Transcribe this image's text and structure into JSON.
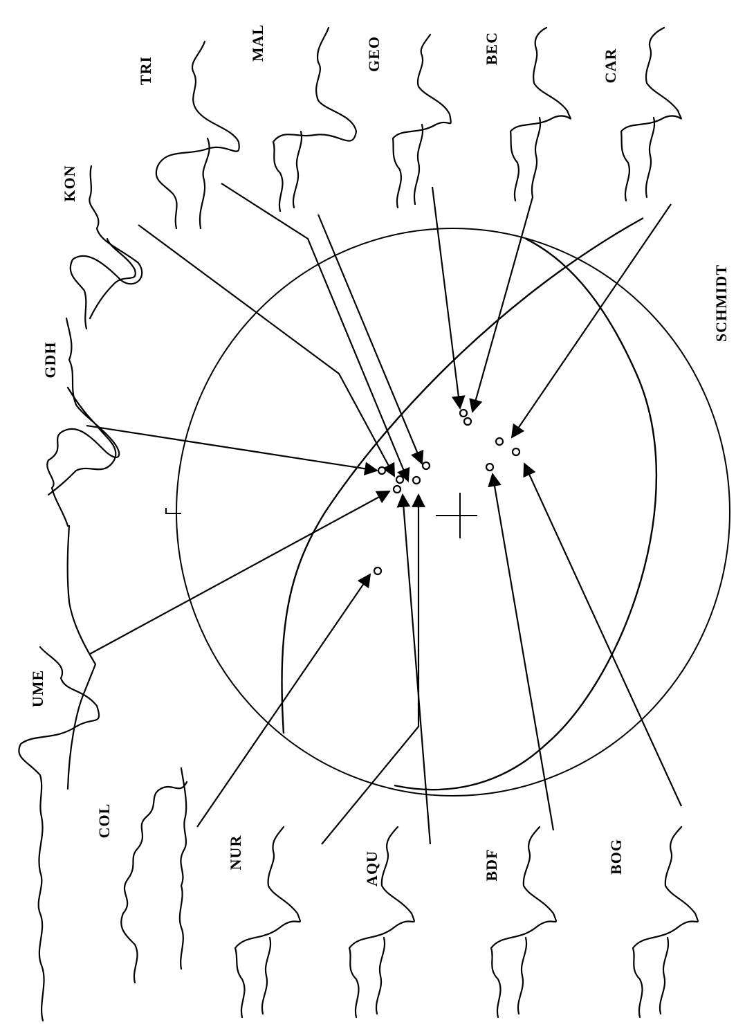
{
  "diagram": {
    "net_label": "SCHMIDT",
    "stations": [
      {
        "code": "UME"
      },
      {
        "code": "GDH"
      },
      {
        "code": "KON"
      },
      {
        "code": "TRI"
      },
      {
        "code": "MAL"
      },
      {
        "code": "GEO"
      },
      {
        "code": "BEC"
      },
      {
        "code": "CAR"
      },
      {
        "code": "COL"
      },
      {
        "code": "NUR"
      },
      {
        "code": "AQU"
      },
      {
        "code": "BDF"
      },
      {
        "code": "BOG"
      }
    ]
  }
}
